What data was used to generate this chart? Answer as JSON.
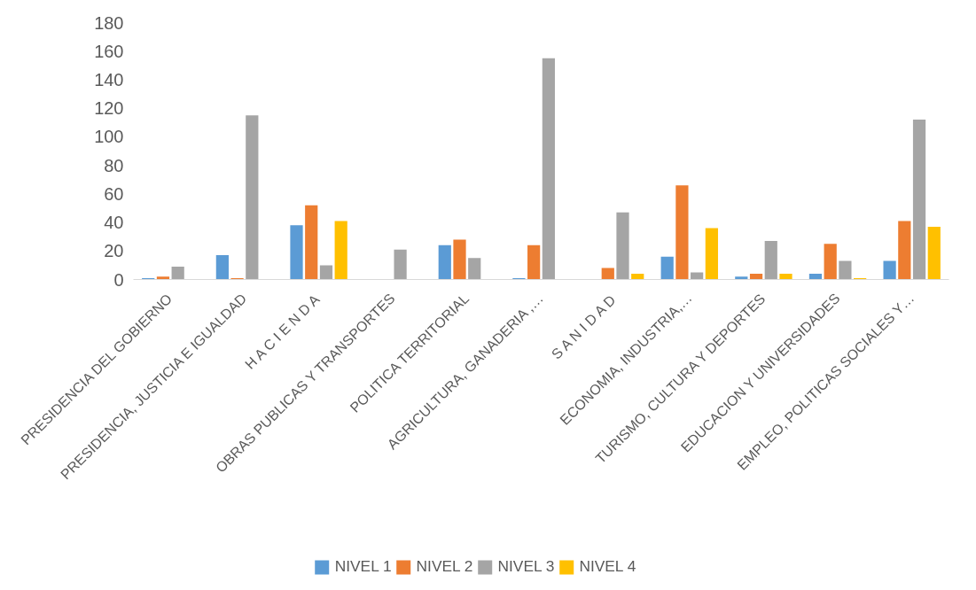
{
  "chart_data": {
    "type": "bar",
    "categories": [
      "PRESIDENCIA DEL GOBIERNO",
      "PRESIDENCIA, JUSTICIA E IGUALDAD",
      "H A C I E N D A",
      "OBRAS PUBLICAS Y TRANSPORTES",
      "POLITICA TERRITORIAL",
      "AGRICULTURA, GANADERIA ,…",
      "S A N I D A D",
      "ECONOMIA, INDUSTRIA,…",
      "TURISMO, CULTURA Y DEPORTES",
      "EDUCACION Y UNIVERSIDADES",
      "EMPLEO, POLITICAS SOCIALES Y…"
    ],
    "series": [
      {
        "name": "NIVEL 1",
        "color": "#5b9bd5",
        "values": [
          1,
          17,
          38,
          0,
          24,
          1,
          0,
          16,
          2,
          4,
          13
        ]
      },
      {
        "name": "NIVEL 2",
        "color": "#ed7d31",
        "values": [
          2,
          1,
          52,
          0,
          28,
          24,
          8,
          66,
          4,
          25,
          41
        ]
      },
      {
        "name": "NIVEL 3",
        "color": "#a5a5a5",
        "values": [
          9,
          115,
          10,
          21,
          15,
          155,
          47,
          5,
          27,
          13,
          112
        ]
      },
      {
        "name": "NIVEL 4",
        "color": "#ffc000",
        "values": [
          0,
          0,
          41,
          0,
          0,
          0,
          4,
          36,
          4,
          1,
          37
        ]
      }
    ],
    "ylim": [
      0,
      180
    ],
    "yticks": [
      0,
      20,
      40,
      60,
      80,
      100,
      120,
      140,
      160,
      180
    ],
    "grid": false,
    "legend": "bottom"
  }
}
